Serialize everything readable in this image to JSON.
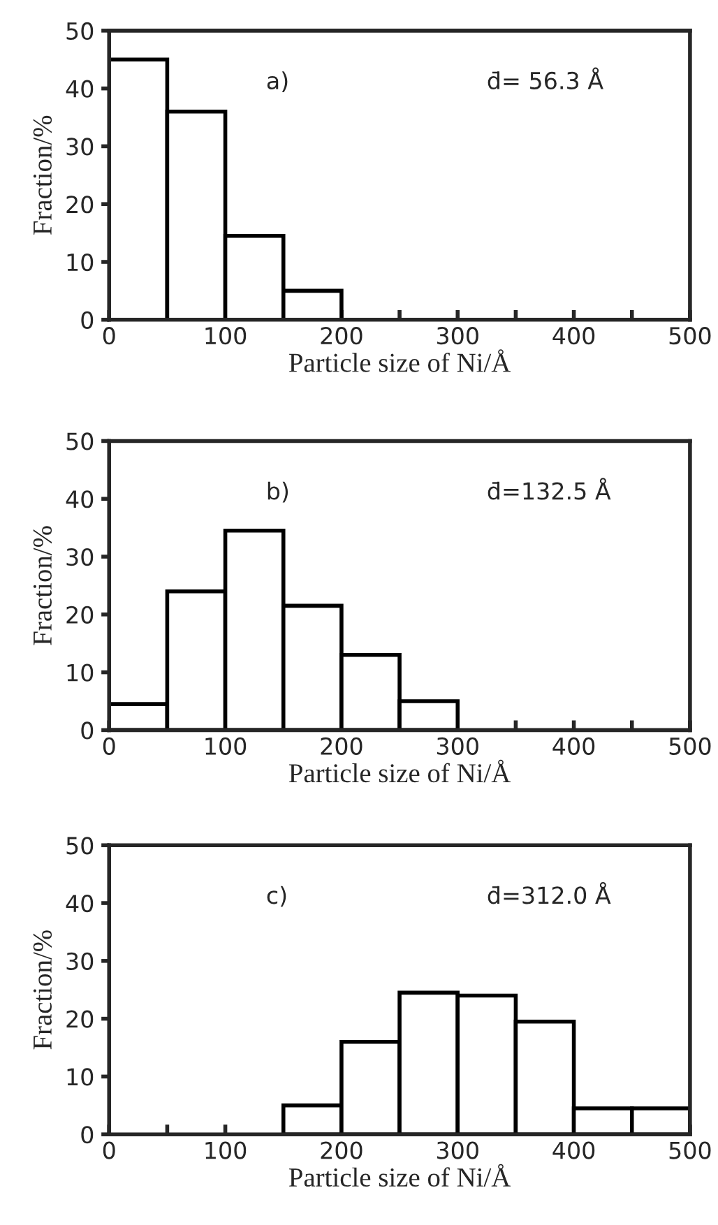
{
  "chart_data": [
    {
      "type": "histogram",
      "xlabel": "Particle size of Ni/Å",
      "ylabel": "Fraction/%",
      "annotations": [
        "a)",
        "d̄= 56.3 Å"
      ],
      "bins": [
        0,
        50,
        100,
        150,
        200
      ],
      "values": [
        45,
        36,
        14.5,
        5
      ],
      "color": "#ffffff",
      "xlim": [
        0,
        500
      ],
      "ylim": [
        0,
        50
      ],
      "xticks": [
        0,
        {
          "value": 50,
          "label": null
        },
        100,
        {
          "value": 150,
          "label": null
        },
        200,
        {
          "value": 250,
          "label": null
        },
        300,
        {
          "value": 350,
          "label": null
        },
        400,
        {
          "value": 450,
          "label": null
        },
        500
      ],
      "yticks": [
        0,
        10,
        20,
        30,
        40,
        50
      ]
    },
    {
      "type": "histogram",
      "xlabel": "Particle size of Ni/Å",
      "ylabel": "Fraction/%",
      "annotations": [
        "b)",
        "d̄=132.5 Å"
      ],
      "bins": [
        0,
        50,
        100,
        150,
        200,
        250,
        300
      ],
      "values": [
        4.5,
        24,
        34.5,
        21.5,
        13,
        5
      ],
      "color": "#ffffff",
      "xlim": [
        0,
        500
      ],
      "ylim": [
        0,
        50
      ],
      "xticks": [
        0,
        {
          "value": 50,
          "label": null
        },
        100,
        {
          "value": 150,
          "label": null
        },
        200,
        {
          "value": 250,
          "label": null
        },
        300,
        {
          "value": 350,
          "label": null
        },
        400,
        {
          "value": 450,
          "label": null
        },
        500
      ],
      "yticks": [
        0,
        10,
        20,
        30,
        40,
        50
      ]
    },
    {
      "type": "histogram",
      "xlabel": "Particle size of Ni/Å",
      "ylabel": "Fraction/%",
      "annotations": [
        "c)",
        "d̄=312.0 Å"
      ],
      "bins": [
        150,
        200,
        250,
        300,
        350,
        400,
        450,
        500
      ],
      "values": [
        5,
        16,
        24.5,
        24,
        19.5,
        4.5,
        4.5
      ],
      "color": "#ffffff",
      "xlim": [
        0,
        500
      ],
      "ylim": [
        0,
        50
      ],
      "xticks": [
        0,
        {
          "value": 50,
          "label": null
        },
        100,
        {
          "value": 150,
          "label": null
        },
        200,
        {
          "value": 250,
          "label": null
        },
        300,
        {
          "value": 350,
          "label": null
        },
        400,
        {
          "value": 450,
          "label": null
        },
        500
      ],
      "yticks": [
        0,
        10,
        20,
        30,
        40,
        50
      ]
    }
  ]
}
